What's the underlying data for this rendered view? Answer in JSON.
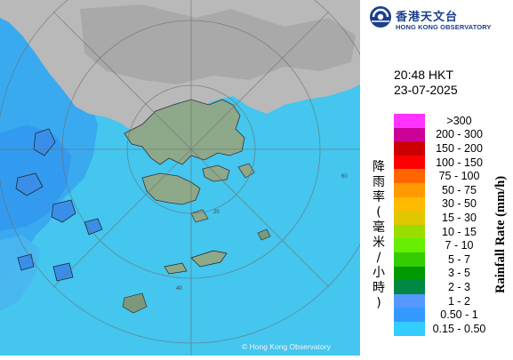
{
  "header": {
    "org_name_cn": "香港天文台",
    "org_name_en": "HONG KONG OBSERVATORY",
    "time": "20:48 HKT",
    "date": "23-07-2025"
  },
  "legend": {
    "title_en": "Rainfall Rate (mm/h)",
    "title_cn": "降雨率(毫米/小時)",
    "items": [
      {
        "label": ">300",
        "color": "#ff33ff"
      },
      {
        "label": "200 - 300",
        "color": "#cc0099"
      },
      {
        "label": "150 - 200",
        "color": "#cc0000"
      },
      {
        "label": "100 - 150",
        "color": "#ff0000"
      },
      {
        "label": "75 - 100",
        "color": "#ff6600"
      },
      {
        "label": "50 - 75",
        "color": "#ff9900"
      },
      {
        "label": "30 - 50",
        "color": "#ffbb00"
      },
      {
        "label": "15 - 30",
        "color": "#e0c800"
      },
      {
        "label": "10 - 15",
        "color": "#99dd00"
      },
      {
        "label": "7 - 10",
        "color": "#66ee00"
      },
      {
        "label": "5 - 7",
        "color": "#33cc00"
      },
      {
        "label": "3 - 5",
        "color": "#009900"
      },
      {
        "label": "2 - 3",
        "color": "#008844"
      },
      {
        "label": "1 - 2",
        "color": "#5599ff"
      },
      {
        "label": "0.50 - 1",
        "color": "#3399ff"
      },
      {
        "label": "0.15 - 0.50",
        "color": "#33ccff"
      }
    ]
  },
  "map": {
    "range_ring_labels": [
      "20",
      "40",
      "60"
    ],
    "copyright": "© Hong Kong Observatory",
    "colors": {
      "sea": "#3fc7f0",
      "rain_light": "#38a8f2",
      "land_gray": "#b8b8b8",
      "land_green": "#8fa88a"
    }
  }
}
